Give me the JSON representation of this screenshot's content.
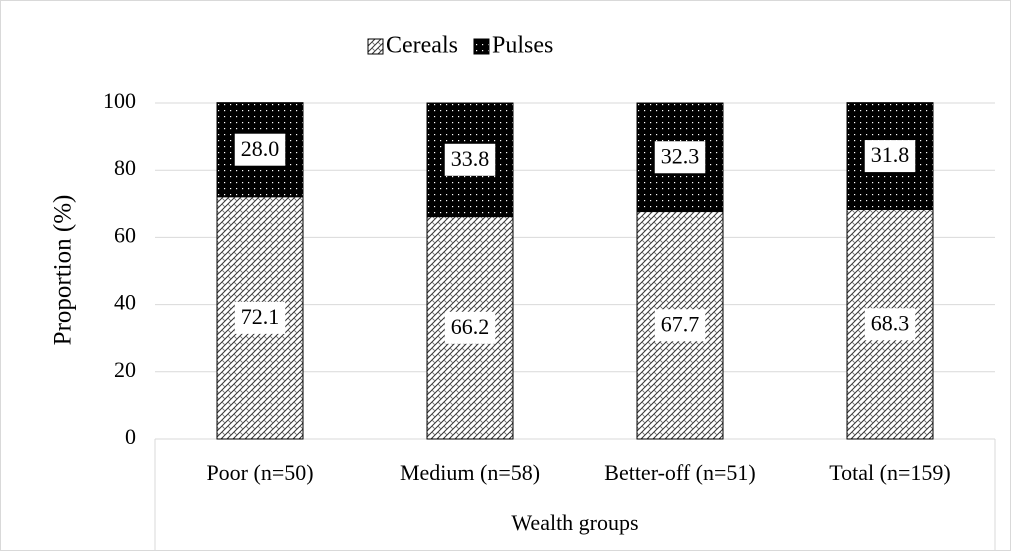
{
  "chart_data": {
    "type": "stacked_bar",
    "categories": [
      "Poor (n=50)",
      "Medium (n=58)",
      "Better-off (n=51)",
      "Total (n=159)"
    ],
    "series": [
      {
        "name": "Cereals",
        "color": "#000000",
        "pattern": "crosshatch",
        "values": [
          72.1,
          66.2,
          67.7,
          68.3
        ]
      },
      {
        "name": "Pulses",
        "color": "#000000",
        "pattern": "dots",
        "values": [
          28,
          33.8,
          32.3,
          31.8
        ],
        "value_labels": [
          "28.0",
          "33.8",
          "32.3",
          "31.8"
        ]
      }
    ],
    "ylabel": "Proportion (%)",
    "xlabel": "Wealth groups",
    "ylim": [
      0,
      100
    ],
    "yticks": [
      0,
      20,
      40,
      60,
      80,
      100
    ],
    "grid": true,
    "legend": "top"
  }
}
